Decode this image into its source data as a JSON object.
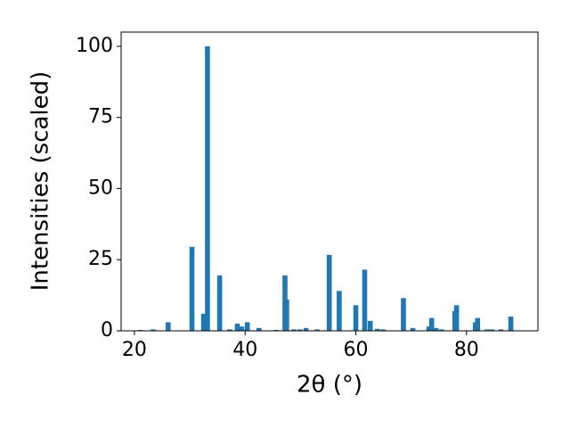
{
  "chart_data": {
    "type": "bar",
    "xlabel": "2θ (°)",
    "ylabel": "Intensities (scaled)",
    "color": "#1f77b4",
    "x": [
      21.1,
      23.4,
      26.1,
      30.4,
      32.5,
      33.2,
      35.4,
      37.2,
      38.6,
      39.4,
      40.4,
      42.5,
      45.6,
      47.2,
      47.5,
      48.8,
      49.9,
      51.0,
      53.0,
      55.2,
      57.0,
      60.0,
      61.6,
      62.6,
      63.9,
      64.9,
      68.6,
      70.3,
      73.2,
      73.7,
      74.5,
      75.5,
      77.9,
      78.2,
      81.6,
      82.0,
      83.7,
      84.6,
      86.2,
      88.0
    ],
    "values": [
      0.3,
      0.5,
      3,
      29.5,
      6,
      100,
      19.5,
      0.5,
      2.5,
      1.5,
      3,
      1,
      0.3,
      19.5,
      11,
      0.5,
      0.5,
      1,
      0.5,
      26.7,
      14,
      9,
      21.5,
      3.5,
      0.7,
      0.5,
      11.5,
      1,
      1.5,
      4.5,
      1,
      0.5,
      7,
      9,
      3,
      4.5,
      0.5,
      0.5,
      0.5,
      5
    ],
    "xlim": [
      17.6,
      92.9
    ],
    "ylim": [
      0,
      105
    ],
    "xticks": [
      20,
      40,
      60,
      80
    ],
    "yticks": [
      0,
      25,
      50,
      75,
      100
    ]
  }
}
